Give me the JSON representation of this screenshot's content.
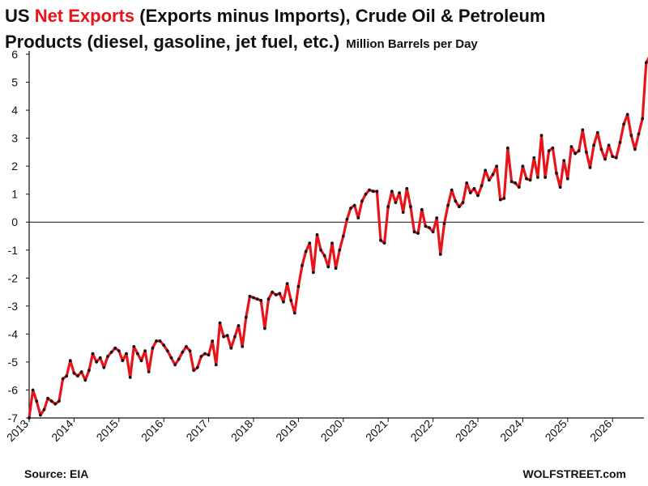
{
  "chart_data": {
    "type": "line",
    "title_line1": {
      "pre": "US ",
      "highlight": "Net Exports",
      "post": " (Exports minus Imports), Crude Oil & Petroleum"
    },
    "title_line2": "Products (diesel, gasoline, jet fuel, etc.)",
    "subtitle": "Million Barrels per Day",
    "source": "Source: EIA",
    "credit": "WOLFSTREET.com",
    "x_start_year": 2013,
    "x_range": [
      2013,
      2026.7
    ],
    "xticks": [
      2013,
      2014,
      2015,
      2016,
      2017,
      2018,
      2019,
      2020,
      2021,
      2022,
      2023,
      2024,
      2025,
      2026
    ],
    "ylim": [
      -7,
      6
    ],
    "yticks": [
      6,
      5,
      4,
      3,
      2,
      1,
      0,
      -1,
      -2,
      -3,
      -4,
      -5,
      -6,
      -7
    ],
    "line_color": "#e8141c",
    "marker_color": "#111111",
    "highlight_color": "#e8141c",
    "series": [
      {
        "values": [
          -7.0,
          -6.0,
          -6.4,
          -6.9,
          -6.7,
          -6.3,
          -6.4,
          -6.5,
          -6.4,
          -5.6,
          -5.5,
          -4.95,
          -5.4,
          -5.5,
          -5.35,
          -5.65,
          -5.3,
          -4.7,
          -5.0,
          -4.85,
          -5.2,
          -4.8,
          -4.65,
          -4.5,
          -4.6,
          -4.95,
          -4.7,
          -5.55,
          -4.45,
          -4.7,
          -4.95,
          -4.6,
          -5.35,
          -4.5,
          -4.25,
          -4.25,
          -4.4,
          -4.6,
          -4.85,
          -5.1,
          -4.9,
          -4.65,
          -4.45,
          -4.6,
          -5.3,
          -5.2,
          -4.8,
          -4.7,
          -4.75,
          -4.25,
          -5.1,
          -3.6,
          -4.1,
          -4.05,
          -4.5,
          -4.1,
          -3.7,
          -4.45,
          -3.4,
          -2.65,
          -2.7,
          -2.75,
          -2.8,
          -3.8,
          -2.75,
          -2.5,
          -2.6,
          -2.55,
          -2.85,
          -2.2,
          -2.8,
          -3.25,
          -2.3,
          -1.55,
          -1.05,
          -0.75,
          -1.8,
          -0.45,
          -1.0,
          -1.2,
          -1.6,
          -0.75,
          -1.65,
          -1.0,
          -0.5,
          0.1,
          0.5,
          0.6,
          0.15,
          0.75,
          1.0,
          1.15,
          1.1,
          1.1,
          -0.65,
          -0.75,
          0.55,
          1.1,
          0.7,
          1.05,
          0.35,
          1.2,
          0.55,
          -0.35,
          -0.4,
          0.45,
          -0.15,
          -0.2,
          -0.35,
          0.15,
          -1.15,
          -0.05,
          0.6,
          1.15,
          0.75,
          0.55,
          0.7,
          1.4,
          1.05,
          1.2,
          0.95,
          1.3,
          1.85,
          1.5,
          1.7,
          2.0,
          0.8,
          0.85,
          2.65,
          1.45,
          1.4,
          1.25,
          2.0,
          1.55,
          1.5,
          2.3,
          1.6,
          3.1,
          1.6,
          2.55,
          2.65,
          1.75,
          1.25,
          2.2,
          1.55,
          2.7,
          2.45,
          2.55,
          3.3,
          2.5,
          1.95,
          2.75,
          3.2,
          2.6,
          2.25,
          2.75,
          2.35,
          2.3,
          2.85,
          3.5,
          3.85,
          3.1,
          2.6,
          3.15,
          3.7,
          5.7,
          5.95
        ]
      }
    ]
  }
}
